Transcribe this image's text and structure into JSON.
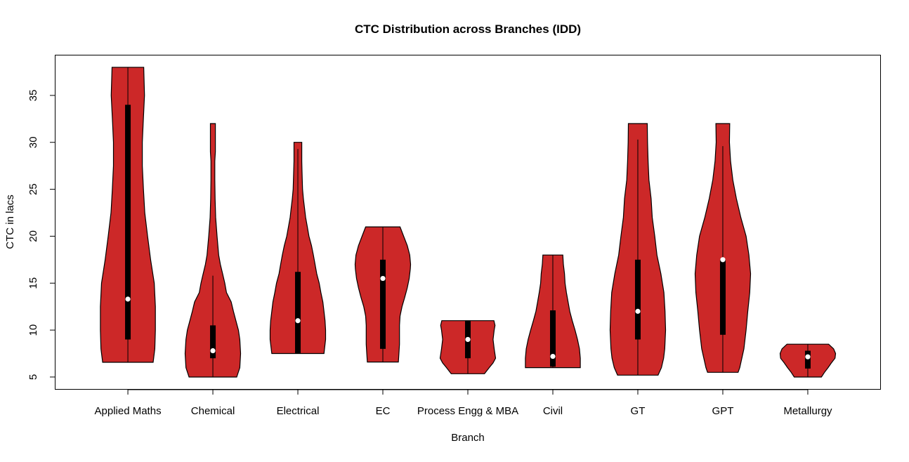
{
  "chart_data": {
    "type": "violin",
    "title": "CTC Distribution across Branches (IDD)",
    "xlabel": "Branch",
    "ylabel": "CTC in lacs",
    "ylim": [
      3.65,
      39.33
    ],
    "yticks": [
      5,
      10,
      15,
      20,
      25,
      30,
      35
    ],
    "grid": false,
    "fill_color": "#CC2828",
    "categories": [
      "Applied Maths",
      "Chemical",
      "Electrical",
      "EC",
      "Process Engg & MBA",
      "Civil",
      "GT",
      "GPT",
      "Metallurgy"
    ],
    "series": [
      {
        "min": 6.57,
        "max": 38,
        "q1": 9,
        "median": 13.3,
        "q3": 34,
        "whisker_low": 6.57,
        "whisker_high": 38,
        "density": [
          [
            6.57,
            0.91
          ],
          [
            8,
            0.97
          ],
          [
            10,
            0.99
          ],
          [
            12.5,
            0.99
          ],
          [
            15,
            0.95
          ],
          [
            17.5,
            0.82
          ],
          [
            20,
            0.71
          ],
          [
            22.5,
            0.61
          ],
          [
            25,
            0.56
          ],
          [
            27.5,
            0.52
          ],
          [
            30,
            0.52
          ],
          [
            32,
            0.55
          ],
          [
            35,
            0.6
          ],
          [
            38,
            0.57
          ]
        ]
      },
      {
        "min": 5,
        "max": 32,
        "q1": 7,
        "median": 7.8,
        "q3": 10.5,
        "whisker_low": 5,
        "whisker_high": 15.8,
        "density": [
          [
            5,
            0.86
          ],
          [
            6,
            0.97
          ],
          [
            7.5,
            1
          ],
          [
            9,
            0.97
          ],
          [
            10,
            0.92
          ],
          [
            11,
            0.83
          ],
          [
            12,
            0.74
          ],
          [
            13,
            0.66
          ],
          [
            14,
            0.49
          ],
          [
            15,
            0.43
          ],
          [
            16,
            0.35
          ],
          [
            17,
            0.27
          ],
          [
            18,
            0.21
          ],
          [
            20,
            0.15
          ],
          [
            22,
            0.1
          ],
          [
            24,
            0.08
          ],
          [
            26,
            0.07
          ],
          [
            28,
            0.07
          ],
          [
            29,
            0.09
          ],
          [
            32,
            0.09
          ]
        ]
      },
      {
        "min": 7.5,
        "max": 30,
        "q1": 7.5,
        "median": 11,
        "q3": 16.2,
        "whisker_low": 7.5,
        "whisker_high": 29.3,
        "density": [
          [
            7.5,
            0.94
          ],
          [
            9,
            1
          ],
          [
            10,
            1
          ],
          [
            11,
            0.98
          ],
          [
            12,
            0.94
          ],
          [
            13,
            0.9
          ],
          [
            14,
            0.83
          ],
          [
            15,
            0.77
          ],
          [
            16,
            0.68
          ],
          [
            17,
            0.62
          ],
          [
            18,
            0.56
          ],
          [
            19,
            0.49
          ],
          [
            20,
            0.4
          ],
          [
            21,
            0.34
          ],
          [
            22,
            0.28
          ],
          [
            23,
            0.24
          ],
          [
            24,
            0.2
          ],
          [
            25,
            0.17
          ],
          [
            27,
            0.15
          ],
          [
            28,
            0.14
          ],
          [
            30,
            0.14
          ]
        ]
      },
      {
        "min": 6.6,
        "max": 21,
        "q1": 8,
        "median": 15.5,
        "q3": 17.5,
        "whisker_low": 6.6,
        "whisker_high": 21,
        "density": [
          [
            6.6,
            0.56
          ],
          [
            7.5,
            0.58
          ],
          [
            8.5,
            0.6
          ],
          [
            10.5,
            0.6
          ],
          [
            11.5,
            0.62
          ],
          [
            12.5,
            0.69
          ],
          [
            13.5,
            0.79
          ],
          [
            14.5,
            0.88
          ],
          [
            15.5,
            0.95
          ],
          [
            16.5,
            0.99
          ],
          [
            17,
            1
          ],
          [
            18,
            0.97
          ],
          [
            19,
            0.88
          ],
          [
            20,
            0.75
          ],
          [
            21,
            0.62
          ]
        ]
      },
      {
        "min": 5.35,
        "max": 11,
        "q1": 7,
        "median": 9,
        "q3": 11,
        "whisker_low": 5.35,
        "whisker_high": 11,
        "density": [
          [
            5.35,
            0.6
          ],
          [
            6,
            0.77
          ],
          [
            6.5,
            0.91
          ],
          [
            7,
            1
          ],
          [
            8,
            0.95
          ],
          [
            9,
            0.91
          ],
          [
            10,
            0.95
          ],
          [
            10.5,
            0.98
          ],
          [
            11,
            0.94
          ]
        ]
      },
      {
        "min": 6,
        "max": 18,
        "q1": 6.1,
        "median": 7.2,
        "q3": 12.1,
        "whisker_low": 6,
        "whisker_high": 18,
        "density": [
          [
            6,
            0.99
          ],
          [
            7,
            0.99
          ],
          [
            8,
            0.96
          ],
          [
            9,
            0.89
          ],
          [
            10,
            0.8
          ],
          [
            11,
            0.7
          ],
          [
            12,
            0.61
          ],
          [
            13,
            0.55
          ],
          [
            14,
            0.49
          ],
          [
            15,
            0.44
          ],
          [
            16,
            0.42
          ],
          [
            17,
            0.38
          ],
          [
            18,
            0.36
          ]
        ]
      },
      {
        "min": 5.2,
        "max": 32,
        "q1": 9,
        "median": 12,
        "q3": 17.5,
        "whisker_low": 5.2,
        "whisker_high": 30.3,
        "density": [
          [
            5.2,
            0.73
          ],
          [
            6,
            0.85
          ],
          [
            7,
            0.93
          ],
          [
            8,
            0.97
          ],
          [
            10,
            1
          ],
          [
            12,
            0.98
          ],
          [
            14,
            0.94
          ],
          [
            16,
            0.83
          ],
          [
            18,
            0.69
          ],
          [
            20,
            0.61
          ],
          [
            22,
            0.52
          ],
          [
            24,
            0.48
          ],
          [
            26,
            0.4
          ],
          [
            28,
            0.37
          ],
          [
            30,
            0.35
          ],
          [
            32,
            0.34
          ]
        ]
      },
      {
        "min": 5.5,
        "max": 32,
        "q1": 9.5,
        "median": 17.5,
        "q3": 17.5,
        "whisker_low": 5.5,
        "whisker_high": 29.6,
        "density": [
          [
            5.5,
            0.55
          ],
          [
            6,
            0.61
          ],
          [
            8,
            0.76
          ],
          [
            10,
            0.84
          ],
          [
            12,
            0.9
          ],
          [
            14,
            0.97
          ],
          [
            16,
            1
          ],
          [
            18,
            0.94
          ],
          [
            20,
            0.84
          ],
          [
            22,
            0.65
          ],
          [
            24,
            0.49
          ],
          [
            26,
            0.36
          ],
          [
            28,
            0.28
          ],
          [
            30,
            0.24
          ],
          [
            32,
            0.25
          ]
        ]
      },
      {
        "min": 5,
        "max": 8.5,
        "q1": 5.9,
        "median": 7.15,
        "q3": 7.8,
        "whisker_low": 5,
        "whisker_high": 8.5,
        "density": [
          [
            5,
            0.49
          ],
          [
            5.5,
            0.6
          ],
          [
            6,
            0.73
          ],
          [
            6.5,
            0.85
          ],
          [
            7,
            0.98
          ],
          [
            7.5,
            1
          ],
          [
            8,
            0.93
          ],
          [
            8.5,
            0.75
          ]
        ]
      }
    ]
  }
}
